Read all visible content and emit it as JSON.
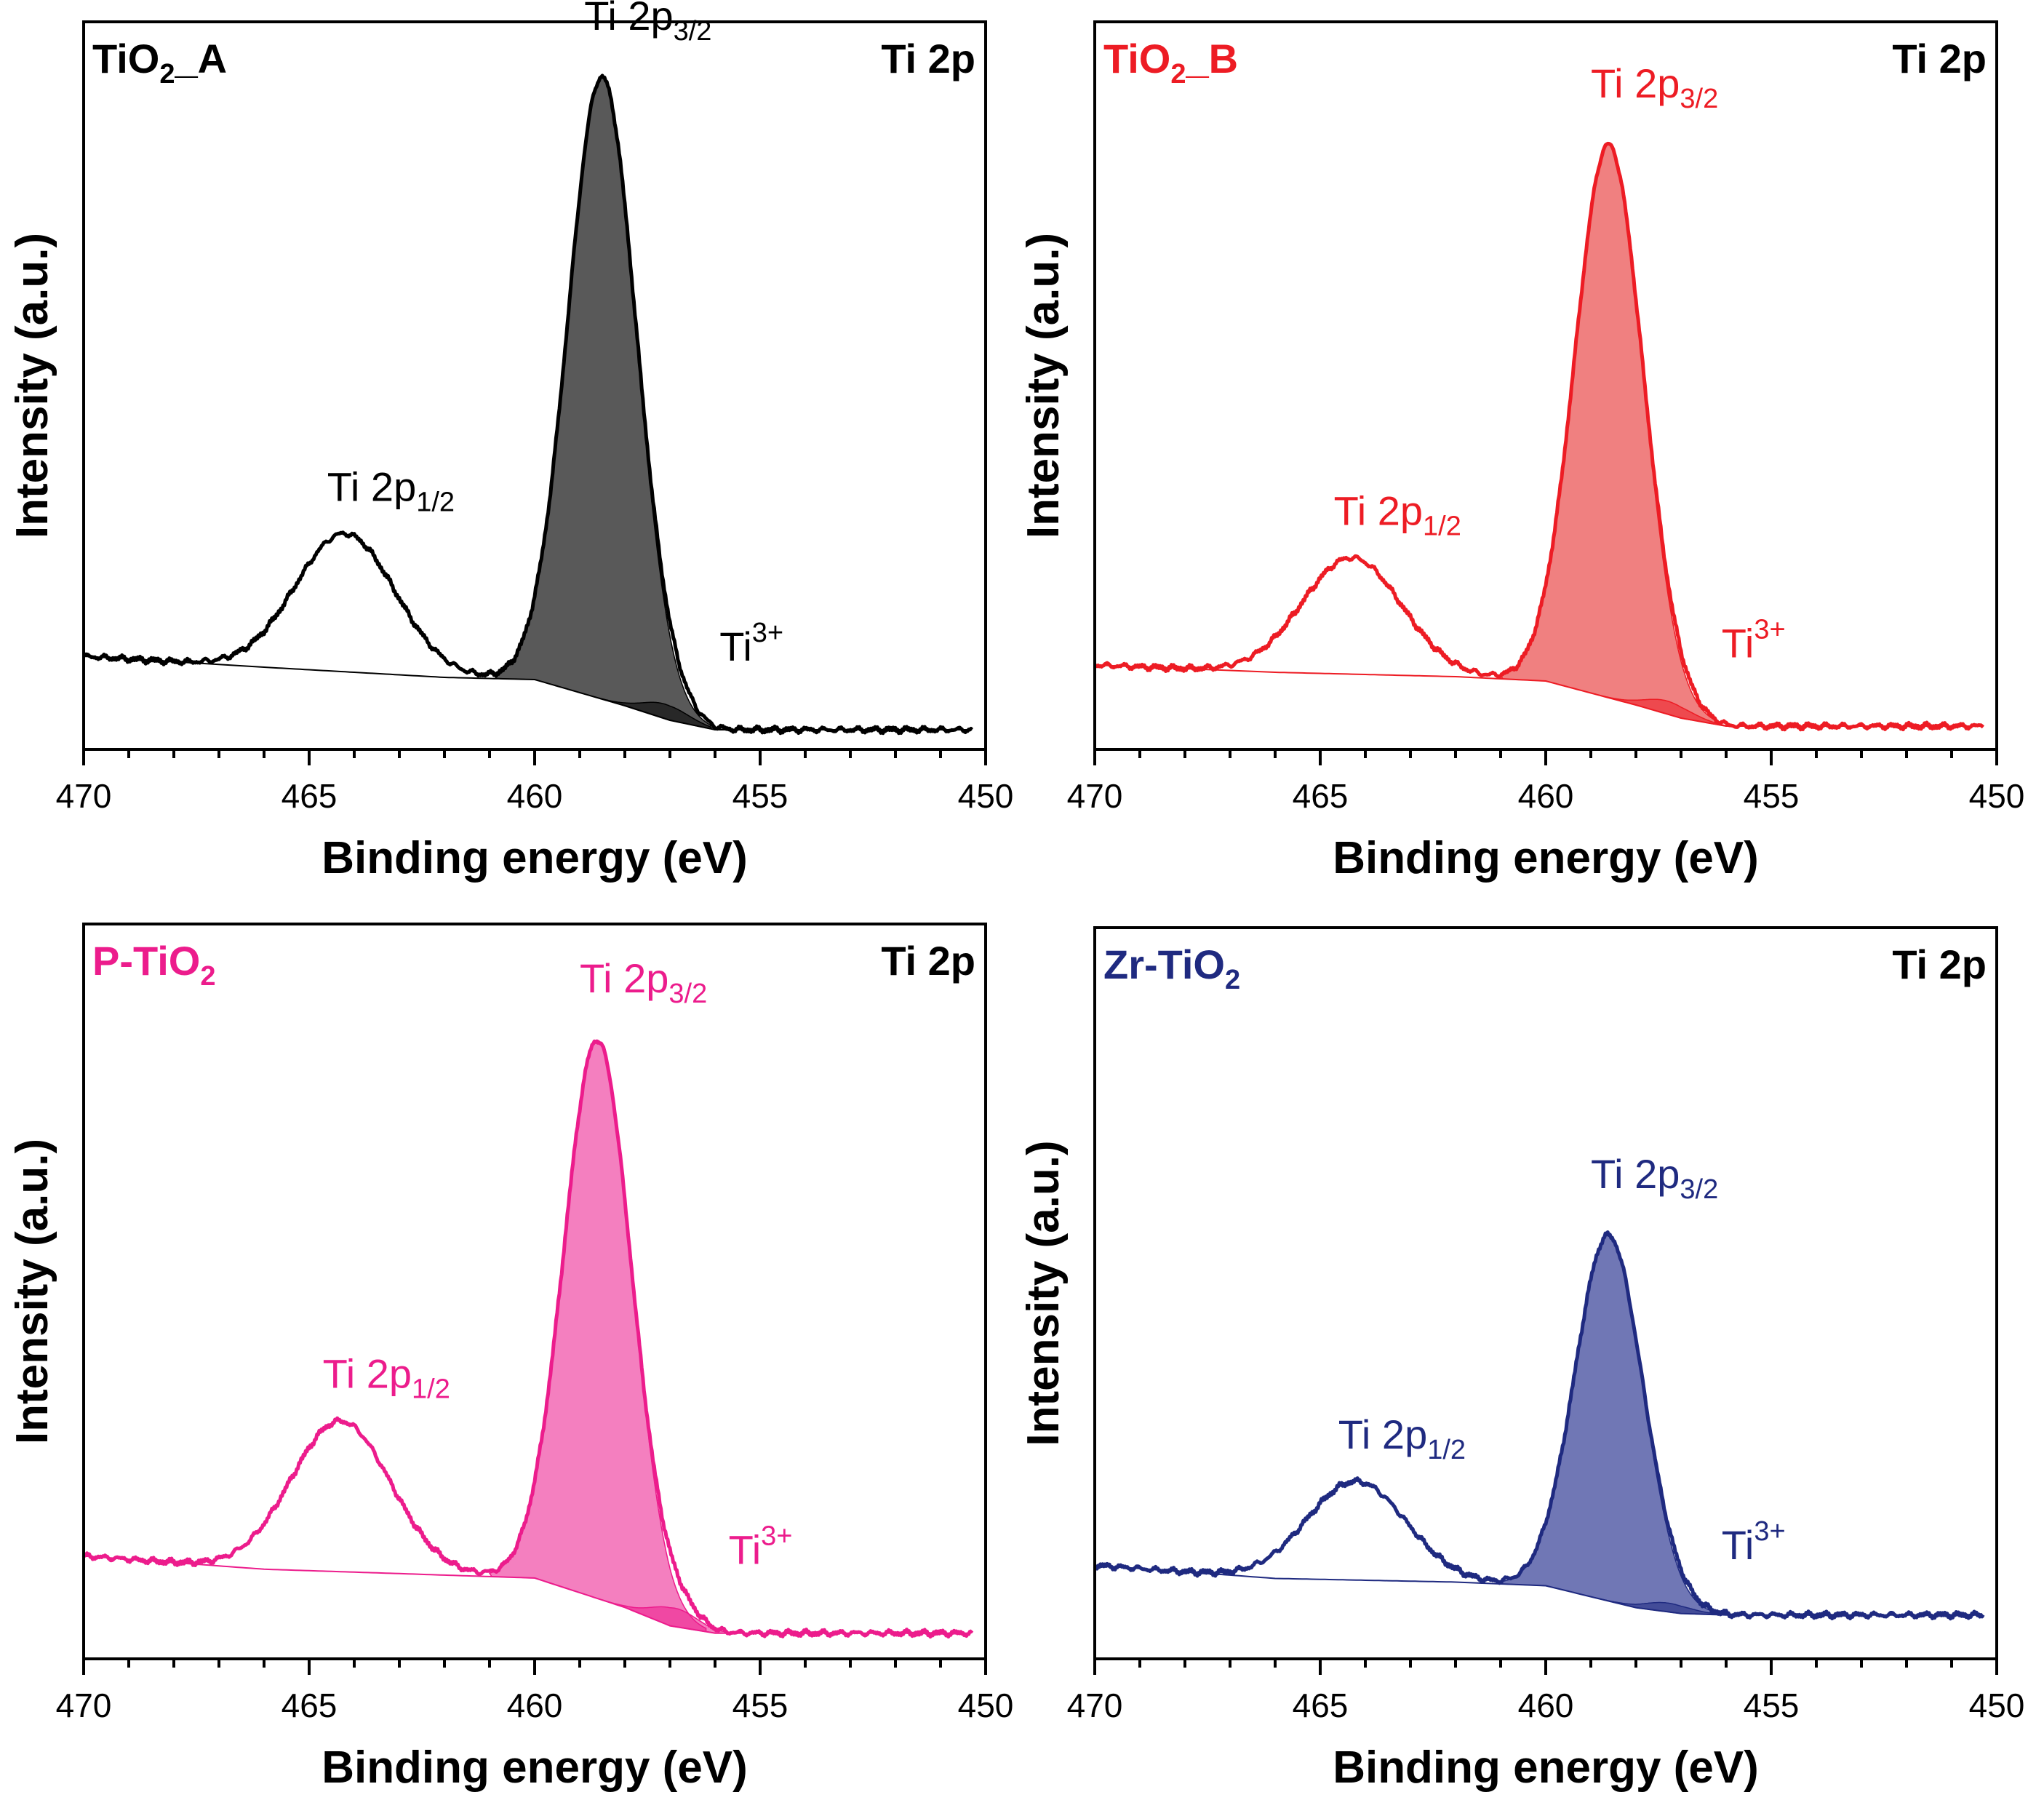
{
  "chart_data": [
    {
      "type": "line",
      "panel": "top-left",
      "sample": "TiO2_A",
      "sample_parts": [
        "TiO",
        "2",
        "_A"
      ],
      "region": "Ti 2p",
      "color": "#000000",
      "fill_color": "#595959",
      "xlabel": "Binding energy (eV)",
      "ylabel": "Intensity (a.u.)",
      "xlim": [
        470,
        450
      ],
      "ylim": [
        0,
        100
      ],
      "xticks": [
        "470",
        "465",
        "460",
        "455",
        "450"
      ],
      "background": {
        "x": [
          470,
          466,
          462,
          460,
          458,
          457,
          456,
          450.3
        ],
        "y": [
          12.8,
          11.3,
          9.9,
          9.6,
          6.0,
          4.0,
          2.7,
          2.7
        ]
      },
      "peaks": [
        {
          "name": "Ti 2p3/2",
          "center": 458.5,
          "height": 85.5,
          "width": 0.75
        },
        {
          "name": "Ti 2p1/2",
          "center": 464.2,
          "height": 19.0,
          "width": 1.1
        },
        {
          "name": "Ti3+",
          "center": 457.1,
          "height": 2.0,
          "width": 0.5
        }
      ],
      "labels": {
        "p32": {
          "main": "Ti 2p",
          "sub": "3/2"
        },
        "p12": {
          "main": "Ti 2p",
          "sub": "1/2"
        },
        "ti3": {
          "main": "Ti",
          "sup": "3+"
        }
      }
    },
    {
      "type": "line",
      "panel": "top-right",
      "sample": "TiO2_B",
      "sample_parts": [
        "TiO",
        "2",
        "_B"
      ],
      "region": "Ti 2p",
      "color": "#ed1c24",
      "fill_color": "#f08080",
      "xlabel": "Binding energy (eV)",
      "ylabel": "Intensity (a.u.)",
      "xlim": [
        470,
        450
      ],
      "ylim": [
        0,
        100
      ],
      "xticks": [
        "470",
        "465",
        "460",
        "455",
        "450"
      ],
      "background": {
        "x": [
          470,
          466,
          462,
          460,
          458,
          457,
          456,
          450.3
        ],
        "y": [
          11.6,
          10.6,
          10.0,
          9.4,
          6.1,
          4.3,
          3.2,
          3.2
        ]
      },
      "peaks": [
        {
          "name": "Ti 2p3/2",
          "center": 458.6,
          "height": 76.0,
          "width": 0.75
        },
        {
          "name": "Ti 2p1/2",
          "center": 464.3,
          "height": 16.0,
          "width": 1.1
        },
        {
          "name": "Ti3+",
          "center": 457.3,
          "height": 1.8,
          "width": 0.5
        }
      ],
      "labels": {
        "p32": {
          "main": "Ti 2p",
          "sub": "3/2"
        },
        "p12": {
          "main": "Ti 2p",
          "sub": "1/2"
        },
        "ti3": {
          "main": "Ti",
          "sup": "3+"
        }
      }
    },
    {
      "type": "line",
      "panel": "bottom-left",
      "sample": "P-TiO2",
      "sample_parts": [
        "P-TiO",
        "2",
        ""
      ],
      "region": "Ti 2p",
      "color": "#ec1c8c",
      "fill_color": "#f47fbf",
      "xlabel": "Binding energy (eV)",
      "ylabel": "Intensity (a.u.)",
      "xlim": [
        470,
        450
      ],
      "ylim": [
        0,
        100
      ],
      "xticks": [
        "470",
        "465",
        "460",
        "455",
        "450"
      ],
      "background": {
        "x": [
          470,
          466,
          462,
          460,
          458,
          457,
          456,
          450.3
        ],
        "y": [
          14.0,
          12.2,
          11.4,
          11.0,
          7.0,
          4.5,
          3.5,
          3.5
        ]
      },
      "peaks": [
        {
          "name": "Ti 2p3/2",
          "center": 458.6,
          "height": 76.0,
          "width": 0.75
        },
        {
          "name": "Ti 2p1/2",
          "center": 464.3,
          "height": 20.5,
          "width": 1.1
        },
        {
          "name": "Ti3+",
          "center": 456.9,
          "height": 2.5,
          "width": 0.5
        }
      ],
      "labels": {
        "p32": {
          "main": "Ti 2p",
          "sub": "3/2"
        },
        "p12": {
          "main": "Ti 2p",
          "sub": "1/2"
        },
        "ti3": {
          "main": "Ti",
          "sup": "3+"
        }
      }
    },
    {
      "type": "line",
      "panel": "bottom-right",
      "sample": "Zr-TiO2",
      "sample_parts": [
        "Zr-TiO",
        "2",
        ""
      ],
      "region": "Ti 2p",
      "color": "#1f2a80",
      "fill_color": "#7077b5",
      "xlabel": "Binding energy (eV)",
      "ylabel": "Intensity (a.u.)",
      "xlim": [
        470,
        450
      ],
      "ylim": [
        0,
        100
      ],
      "xticks": [
        "470",
        "465",
        "460",
        "455",
        "450"
      ],
      "background": {
        "x": [
          470,
          466,
          462,
          460,
          458,
          457,
          456,
          450.3
        ],
        "y": [
          12.8,
          11.0,
          10.5,
          10.0,
          7.0,
          6.2,
          6.0,
          6.0
        ]
      },
      "peaks": [
        {
          "name": "Ti 2p3/2",
          "center": 458.6,
          "height": 50.0,
          "width": 0.75
        },
        {
          "name": "Ti 2p1/2",
          "center": 464.2,
          "height": 13.5,
          "width": 1.1
        },
        {
          "name": "Ti3+",
          "center": 457.3,
          "height": 1.2,
          "width": 0.5
        }
      ],
      "labels": {
        "p32": {
          "main": "Ti 2p",
          "sub": "3/2"
        },
        "p12": {
          "main": "Ti 2p",
          "sub": "1/2"
        },
        "ti3": {
          "main": "Ti",
          "sup": "3+"
        }
      }
    }
  ]
}
